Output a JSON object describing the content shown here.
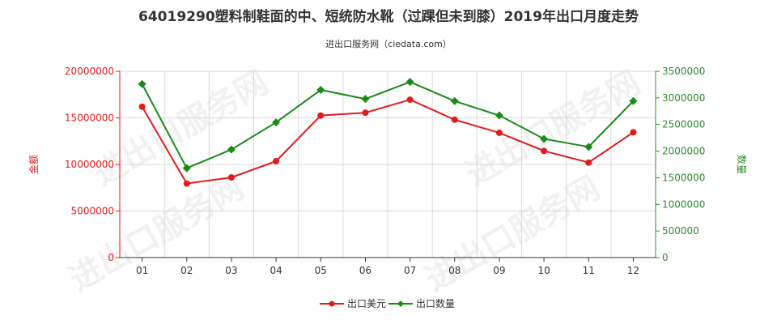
{
  "chart_data": {
    "type": "line",
    "title": "64019290塑料制鞋面的中、短统防水靴（过踝但未到膝）2019年出口月度走势",
    "subtitle": "进出口服务网（ciedata.com）",
    "watermark": "进出口服务网",
    "categories": [
      "01",
      "02",
      "03",
      "04",
      "05",
      "06",
      "07",
      "08",
      "09",
      "10",
      "11",
      "12"
    ],
    "y_left": {
      "label": "金额",
      "ylim": [
        0,
        20000000
      ],
      "ticks": [
        "0",
        "5000000",
        "10000000",
        "15000000",
        "20000000"
      ],
      "color": "#e31a1c"
    },
    "y_right": {
      "label": "数量",
      "ylim": [
        0,
        3500000
      ],
      "ticks": [
        "0",
        "500000",
        "1000000",
        "1500000",
        "2000000",
        "2500000",
        "3000000",
        "3500000"
      ],
      "color": "#2e8b2e"
    },
    "series": [
      {
        "name": "出口美元",
        "axis": "left",
        "color": "#e31a1c",
        "marker": "circle",
        "values": [
          16200000,
          7950000,
          8600000,
          10350000,
          15250000,
          15550000,
          16950000,
          14800000,
          13400000,
          11450000,
          10200000,
          13450000
        ]
      },
      {
        "name": "出口数量",
        "axis": "right",
        "color": "#1a8a1a",
        "marker": "diamond",
        "values": [
          3260000,
          1680000,
          2030000,
          2540000,
          3150000,
          2980000,
          3300000,
          2940000,
          2670000,
          2230000,
          2080000,
          2940000
        ]
      }
    ],
    "grid": true,
    "legend": "bottom-center"
  }
}
